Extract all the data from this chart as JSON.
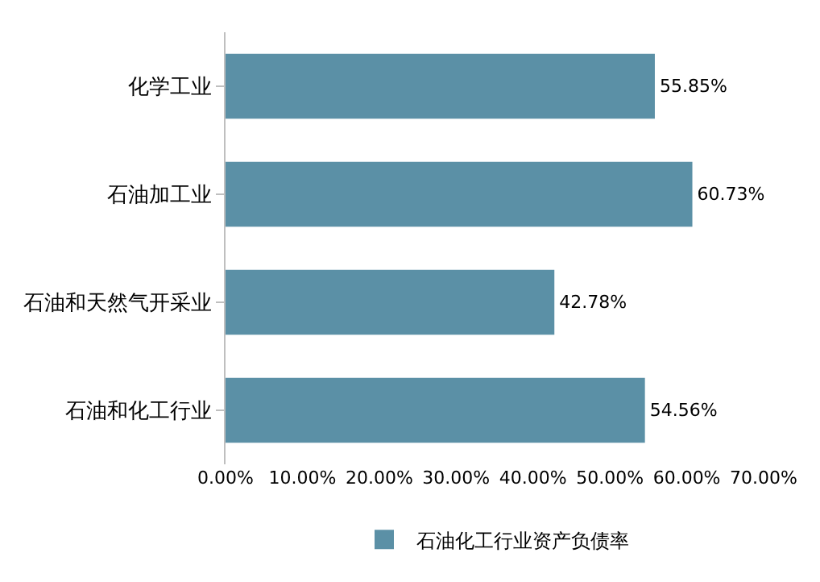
{
  "chart_data": {
    "type": "bar",
    "orientation": "horizontal",
    "categories": [
      "化学工业",
      "石油加工业",
      "石油和天然气开采业",
      "石油和化工行业"
    ],
    "series": [
      {
        "name": "石油化工行业资产负债率",
        "color": "#5b90a6",
        "values": [
          55.85,
          60.73,
          42.78,
          54.56
        ],
        "value_labels": [
          "55.85%",
          "60.73%",
          "42.78%",
          "54.56%"
        ]
      }
    ],
    "xlim": [
      0,
      70
    ],
    "xticks": [
      {
        "value": 0,
        "label": "0.00%"
      },
      {
        "value": 10,
        "label": "10.00%"
      },
      {
        "value": 20,
        "label": "20.00%"
      },
      {
        "value": 30,
        "label": "30.00%"
      },
      {
        "value": 40,
        "label": "40.00%"
      },
      {
        "value": 50,
        "label": "50.00%"
      },
      {
        "value": 60,
        "label": "60.00%"
      },
      {
        "value": 70,
        "label": "70.00%"
      }
    ],
    "grid": false,
    "legend": "bottom"
  }
}
